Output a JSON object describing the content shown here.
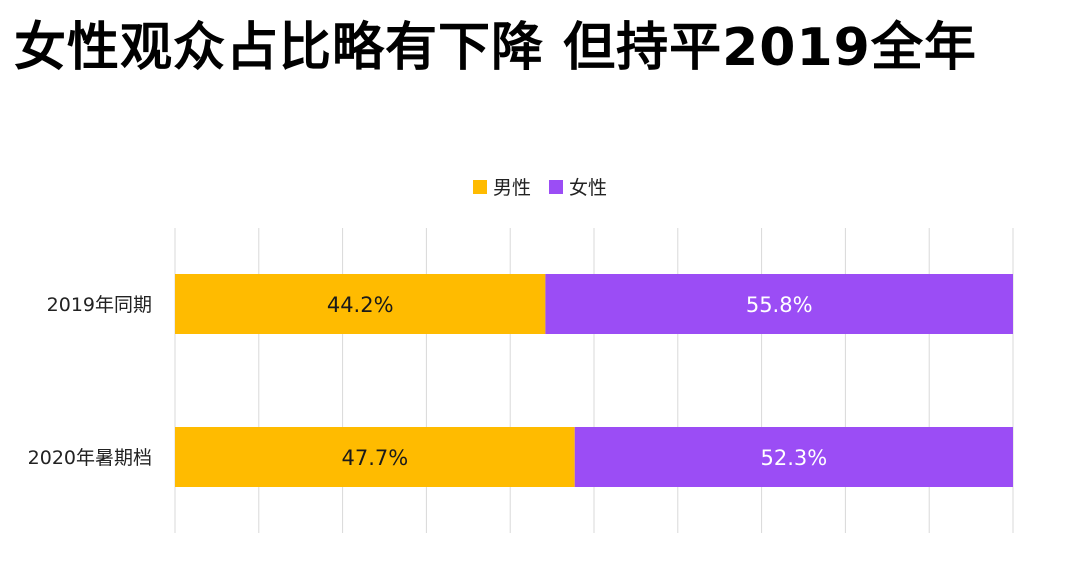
{
  "title": "女性观众占比略有下降 但持平2019全年",
  "colors": {
    "male": "#FFBB00",
    "female": "#9B4DF5",
    "grid": "#D9D9D9"
  },
  "chart_data": {
    "type": "bar",
    "orientation": "horizontal",
    "stacked": true,
    "categories": [
      "2019年同期",
      "2020年暑期档"
    ],
    "series": [
      {
        "name": "男性",
        "values": [
          44.2,
          47.7
        ],
        "labels": [
          "44.2%",
          "47.7%"
        ],
        "color": "#FFBB00"
      },
      {
        "name": "女性",
        "values": [
          55.8,
          52.3
        ],
        "labels": [
          "55.8%",
          "52.3%"
        ],
        "color": "#9B4DF5"
      }
    ],
    "xlim": [
      0,
      100
    ],
    "grid": true,
    "legend": "top-center"
  }
}
